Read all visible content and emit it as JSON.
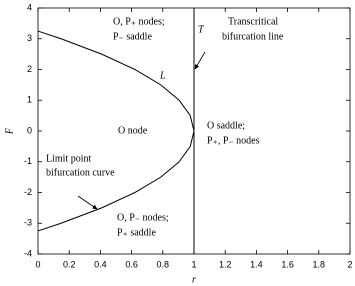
{
  "chart_data": {
    "type": "line",
    "xlabel": "r",
    "ylabel": "F",
    "xlim": [
      0,
      2
    ],
    "ylim": [
      -4,
      4
    ],
    "xticks": [
      0,
      0.2,
      0.4,
      0.6,
      0.8,
      1,
      1.2,
      1.4,
      1.6,
      1.8,
      2
    ],
    "yticks": [
      -4,
      -3,
      -2,
      -1,
      0,
      1,
      2,
      3,
      4
    ],
    "series": [
      {
        "name": "L",
        "color": "#000000",
        "x": [
          0,
          0.148,
          0.408,
          0.621,
          0.787,
          0.905,
          0.976,
          1,
          0.976,
          0.905,
          0.787,
          0.621,
          0.408,
          0.148,
          0
        ],
        "values": [
          -3.25,
          -3,
          -2.5,
          -2,
          -1.5,
          -1,
          -0.5,
          0,
          0.5,
          1,
          1.5,
          2,
          2.5,
          3,
          3.25
        ]
      },
      {
        "name": "T",
        "color": "#000000",
        "x": [
          1,
          1
        ],
        "values": [
          -4,
          4
        ]
      }
    ],
    "annotations": [
      "O, P₊ nodes;",
      "P₋ saddle",
      "Transcritical",
      "bifurcation line",
      "O node",
      "O saddle;",
      "P₊, P₋ nodes",
      "Limit point",
      "bifurcation curve",
      "O, P₋ nodes;",
      "P₊ saddle"
    ]
  }
}
